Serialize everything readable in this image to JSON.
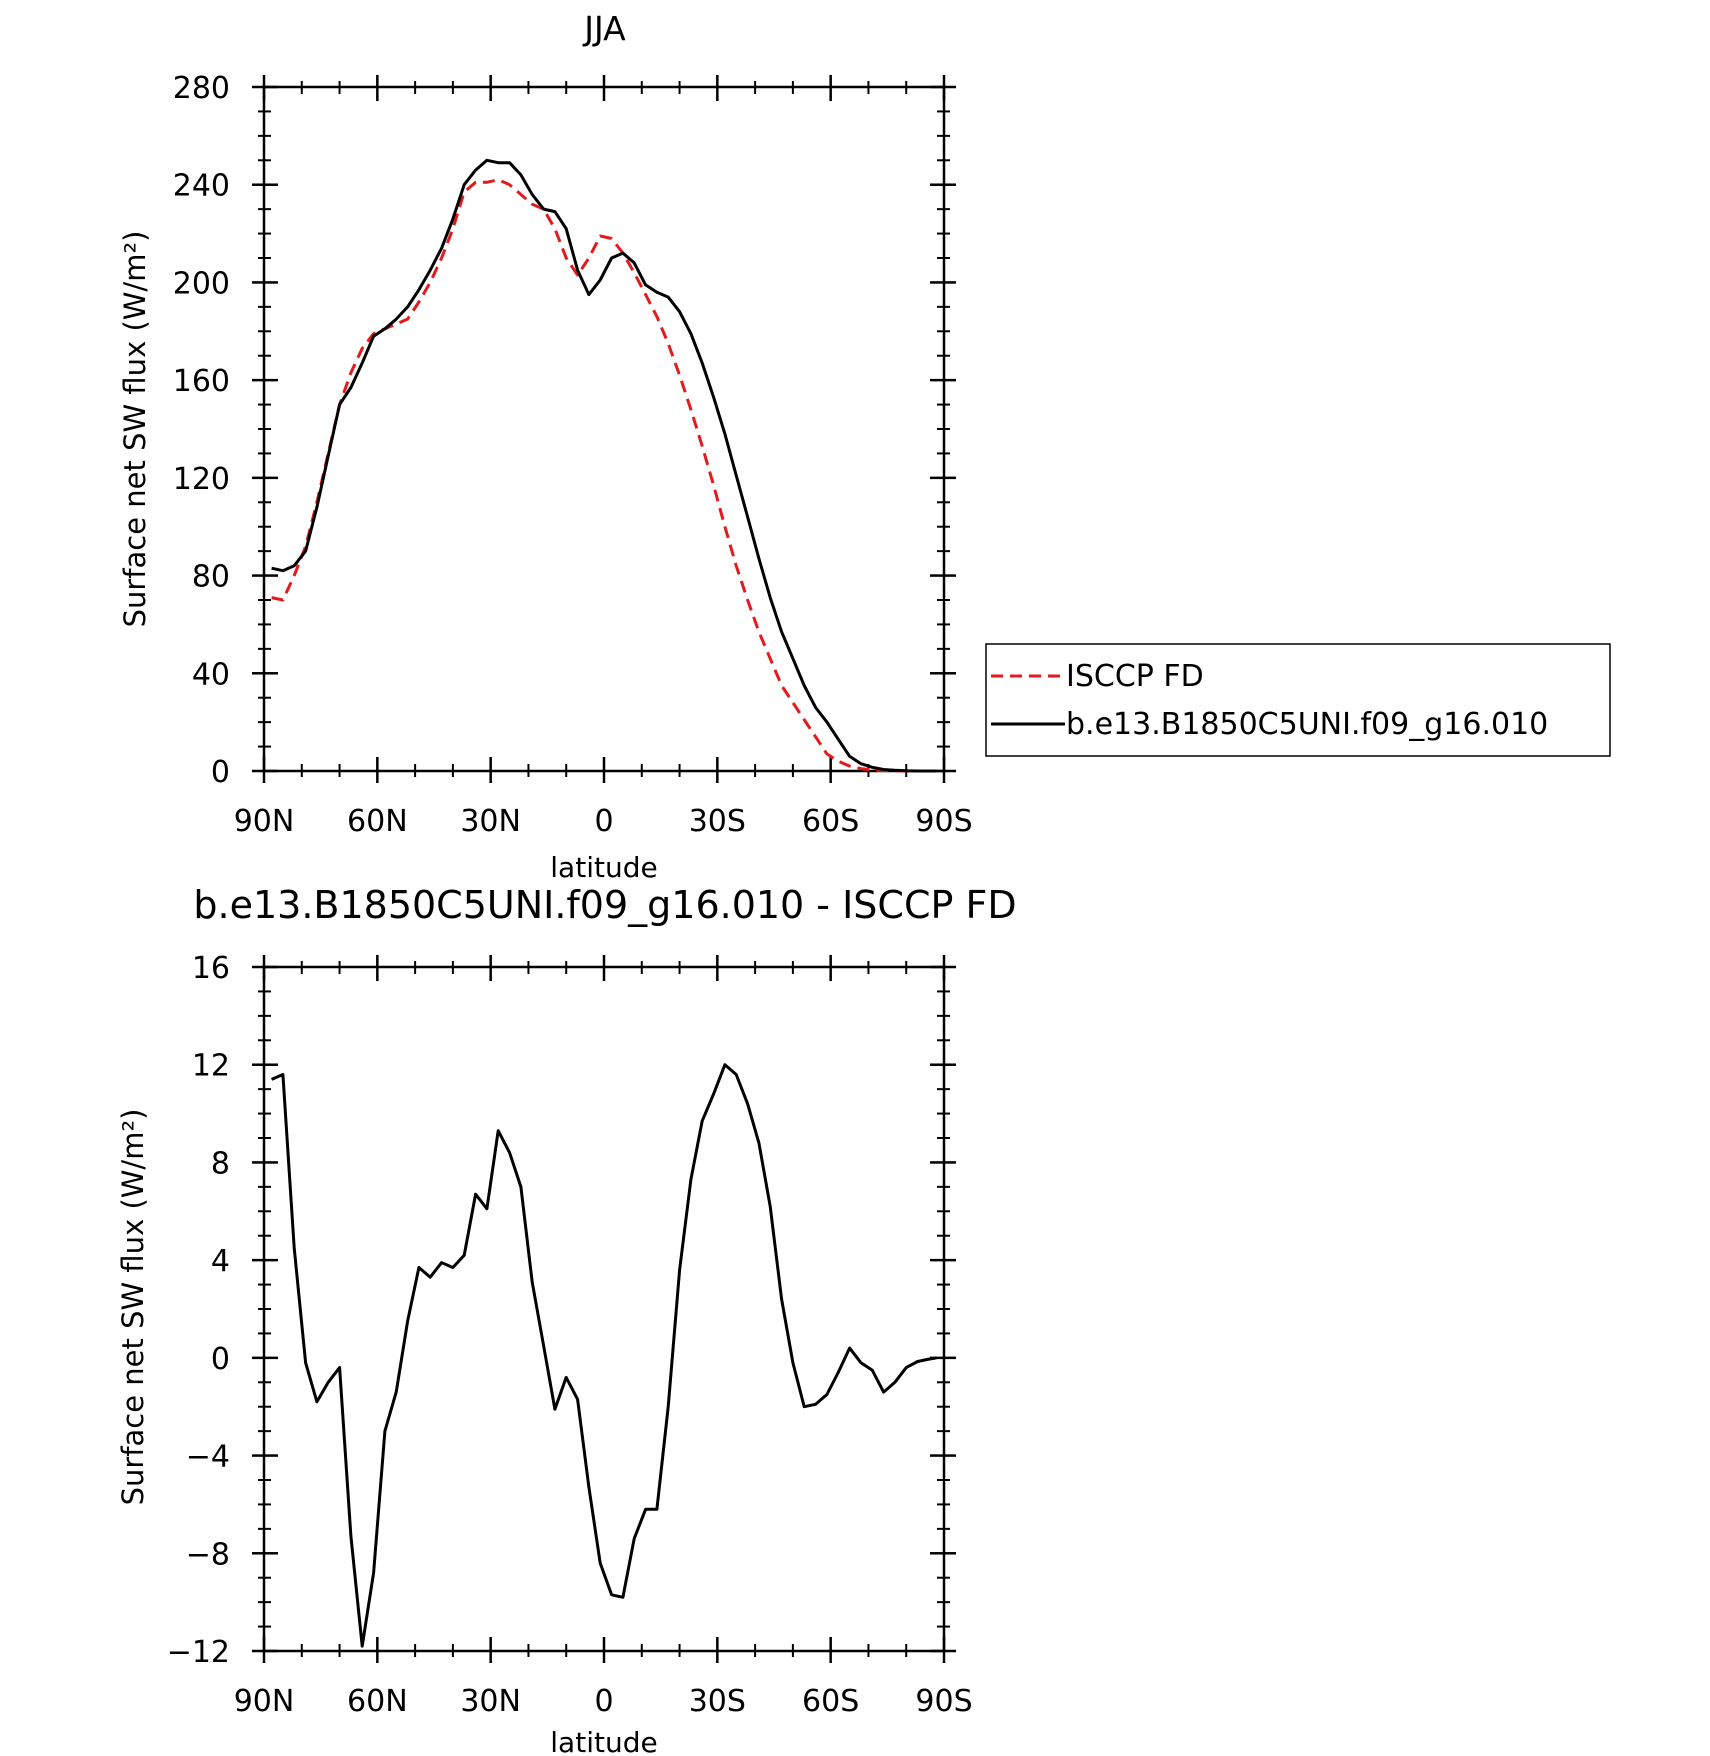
{
  "chart_data": [
    {
      "type": "line",
      "title": "JJA",
      "xlabel": "latitude",
      "ylabel": "Surface net SW flux (W/m²)",
      "xlim": [
        90,
        -90
      ],
      "ylim": [
        0,
        280
      ],
      "xticks": [
        90,
        60,
        30,
        0,
        -30,
        -60,
        -90
      ],
      "xtick_labels": [
        "90N",
        "60N",
        "30N",
        "0",
        "30S",
        "60S",
        "90S"
      ],
      "yticks": [
        0,
        40,
        80,
        120,
        160,
        200,
        240,
        280
      ],
      "ytick_labels": [
        "0",
        "40",
        "80",
        "120",
        "160",
        "200",
        "240",
        "280"
      ],
      "legend_position": "right",
      "x": [
        88,
        85,
        82,
        79,
        76,
        73,
        70,
        67,
        64,
        61,
        58,
        55,
        52,
        49,
        46,
        43,
        40,
        37,
        34,
        31,
        28,
        25,
        22,
        19,
        16,
        13,
        10,
        7,
        4,
        1,
        -2,
        -5,
        -8,
        -11,
        -14,
        -17,
        -20,
        -23,
        -26,
        -29,
        -32,
        -35,
        -38,
        -41,
        -44,
        -47,
        -50,
        -53,
        -56,
        -59,
        -62,
        -65,
        -68,
        -71,
        -74,
        -77,
        -80,
        -83,
        -86,
        -88
      ],
      "series": [
        {
          "name": "ISCCP FD",
          "color": "#e41a1c",
          "dash": "dashed",
          "values": [
            71,
            70,
            80,
            92,
            110,
            130,
            150,
            163,
            173,
            179,
            181,
            183,
            185,
            192,
            200,
            210,
            222,
            237,
            241,
            241,
            242,
            240,
            236,
            232,
            230,
            222,
            210,
            203,
            210,
            219,
            218,
            212,
            204,
            195,
            186,
            175,
            162,
            148,
            133,
            117,
            100,
            84,
            70,
            57,
            46,
            35,
            28,
            21,
            14,
            7,
            4,
            2,
            1,
            0.4,
            0.2,
            0.1,
            0,
            0,
            0,
            0
          ]
        },
        {
          "name": "b.e13.B1850C5UNI.f09_g16.010",
          "color": "#000000",
          "dash": "solid",
          "values": [
            83,
            82,
            84,
            90,
            108,
            129,
            150,
            157,
            167,
            178,
            181,
            185,
            190,
            197,
            205,
            214,
            226,
            240,
            246,
            250,
            249,
            249,
            244,
            236,
            230,
            229,
            222,
            205,
            195,
            201,
            210,
            212,
            208,
            199,
            196,
            194,
            188,
            179,
            167,
            153,
            138,
            121,
            104,
            87,
            71,
            57,
            46,
            35,
            26,
            20,
            13,
            6,
            3,
            1.5,
            0.6,
            0.3,
            0.1,
            0,
            0,
            0
          ]
        }
      ]
    },
    {
      "type": "line",
      "title": "b.e13.B1850C5UNI.f09_g16.010 - ISCCP FD",
      "xlabel": "latitude",
      "ylabel": "Surface net SW flux (W/m²)",
      "xlim": [
        90,
        -90
      ],
      "ylim": [
        -12,
        16
      ],
      "xticks": [
        90,
        60,
        30,
        0,
        -30,
        -60,
        -90
      ],
      "xtick_labels": [
        "90N",
        "60N",
        "30N",
        "0",
        "30S",
        "60S",
        "90S"
      ],
      "yticks": [
        -12,
        -8,
        -4,
        0,
        4,
        8,
        12,
        16
      ],
      "ytick_labels": [
        "-12",
        "-8",
        "-4",
        "0",
        "4",
        "8",
        "12",
        "16"
      ],
      "x": [
        88,
        85,
        82,
        79,
        76,
        73,
        70,
        67,
        64,
        61,
        58,
        55,
        52,
        49,
        46,
        43,
        40,
        37,
        34,
        31,
        28,
        25,
        22,
        19,
        16,
        13,
        10,
        7,
        4,
        1,
        -2,
        -5,
        -8,
        -11,
        -14,
        -17,
        -20,
        -23,
        -26,
        -29,
        -32,
        -35,
        -38,
        -41,
        -44,
        -47,
        -50,
        -53,
        -56,
        -59,
        -62,
        -65,
        -68,
        -71,
        -74,
        -77,
        -80,
        -83,
        -86,
        -88
      ],
      "series": [
        {
          "color": "#000000",
          "dash": "solid",
          "values": [
            11.4,
            11.6,
            4.5,
            -0.2,
            -1.8,
            -1.0,
            -0.4,
            -7.3,
            -11.8,
            -8.8,
            -3.0,
            -1.4,
            1.5,
            3.7,
            3.3,
            3.9,
            3.7,
            4.2,
            6.7,
            6.1,
            9.3,
            8.4,
            7.0,
            3.1,
            0.5,
            -2.1,
            -0.8,
            -1.7,
            -5.3,
            -8.4,
            -9.7,
            -9.8,
            -7.4,
            -6.2,
            -6.2,
            -2.0,
            3.6,
            7.3,
            9.7,
            10.8,
            12.0,
            11.6,
            10.4,
            8.8,
            6.2,
            2.4,
            -0.2,
            -2.0,
            -1.9,
            -1.5,
            -0.6,
            0.4,
            -0.2,
            -0.5,
            -1.4,
            -1.0,
            -0.4,
            -0.15,
            -0.05,
            0
          ]
        }
      ]
    }
  ]
}
